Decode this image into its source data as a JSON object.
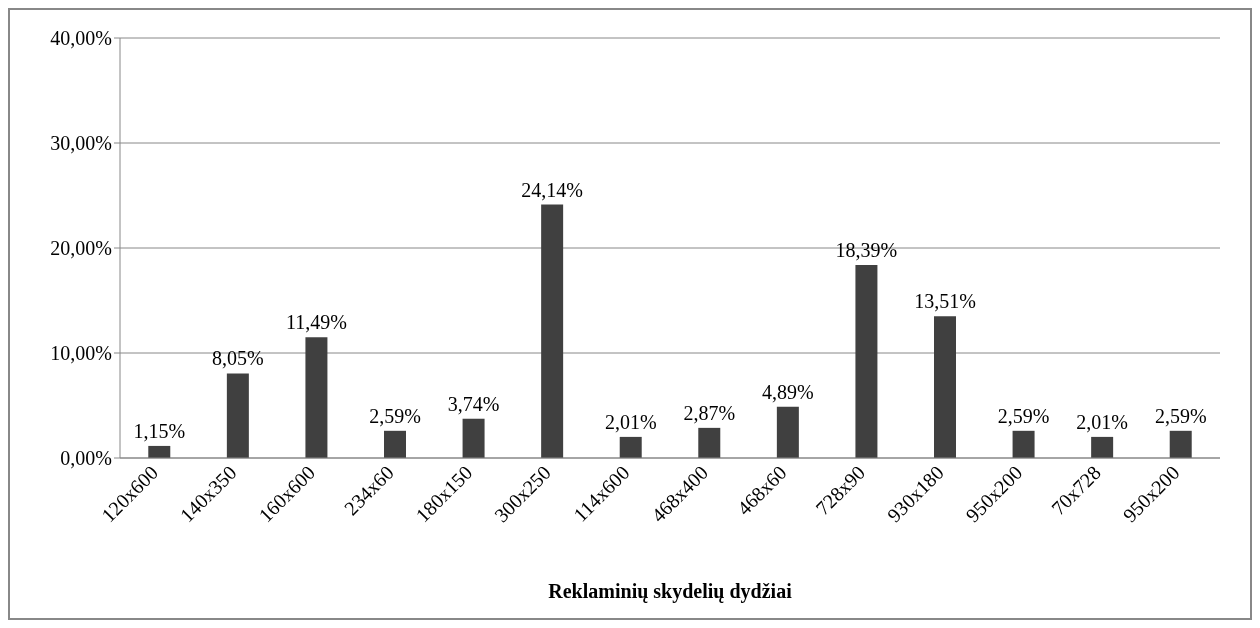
{
  "chart_data": {
    "type": "bar",
    "xlabel": "Reklaminių skydelių dydžiai",
    "categories": [
      "120x600",
      "140x350",
      "160x600",
      "234x60",
      "180x150",
      "300x250",
      "114x600",
      "468x400",
      "468x60",
      "728x90",
      "930x180",
      "950x200",
      "70x728",
      "950x200"
    ],
    "values": [
      1.15,
      8.05,
      11.49,
      2.59,
      3.74,
      24.14,
      2.01,
      2.87,
      4.89,
      18.39,
      13.51,
      2.59,
      2.01,
      2.59
    ],
    "value_labels": [
      "1,15%",
      "8,05%",
      "11,49%",
      "2,59%",
      "3,74%",
      "24,14%",
      "2,01%",
      "2,87%",
      "4,89%",
      "18,39%",
      "13,51%",
      "2,59%",
      "2,01%",
      "2,59%"
    ],
    "color": "#404040",
    "ylim": [
      0,
      40
    ],
    "yticks": [
      {
        "value": 0,
        "label": "0,00%"
      },
      {
        "value": 10,
        "label": "10,00%"
      },
      {
        "value": 20,
        "label": "20,00%"
      },
      {
        "value": 30,
        "label": "30,00%"
      },
      {
        "value": 40,
        "label": "40,00%"
      }
    ],
    "grid": "y"
  }
}
